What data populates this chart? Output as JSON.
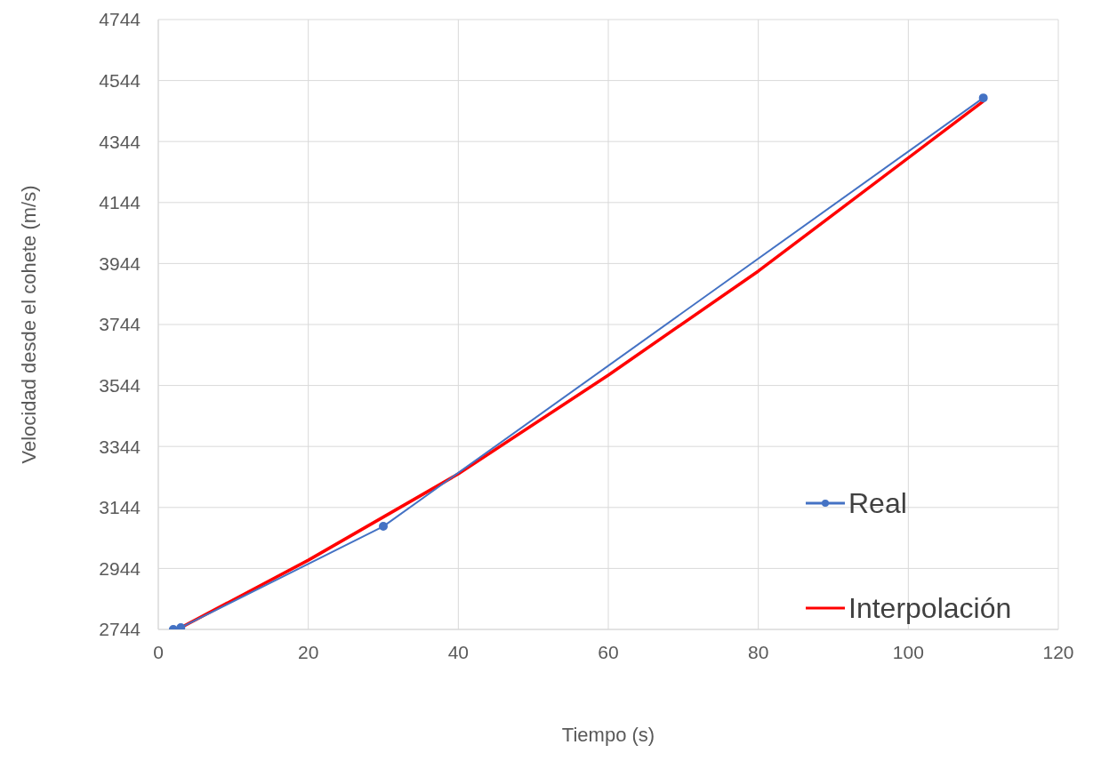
{
  "chart_data": {
    "type": "line",
    "xlabel": "Tiempo (s)",
    "ylabel": "Velocidad desde el cohete (m/s)",
    "xlim": [
      0,
      120
    ],
    "xticks": [
      0,
      20,
      40,
      60,
      80,
      100,
      120
    ],
    "ylim": [
      2744,
      4744
    ],
    "yticks": [
      2744,
      2944,
      3144,
      3344,
      3544,
      3744,
      3944,
      4144,
      4344,
      4544,
      4744
    ],
    "grid": true,
    "legend": "right",
    "line_style": "solid",
    "series": [
      {
        "name": "Real",
        "color": "#4472c4",
        "marker": "circle",
        "x": [
          2,
          3,
          30,
          110
        ],
        "values": [
          2744,
          2750,
          3082,
          4487
        ]
      },
      {
        "name": "Interpolación",
        "color": "#ff0000",
        "marker": "none",
        "x": [
          3,
          20,
          40,
          60,
          80,
          110
        ],
        "values": [
          2750,
          2971,
          3254,
          3578,
          3919,
          4476
        ]
      }
    ]
  }
}
